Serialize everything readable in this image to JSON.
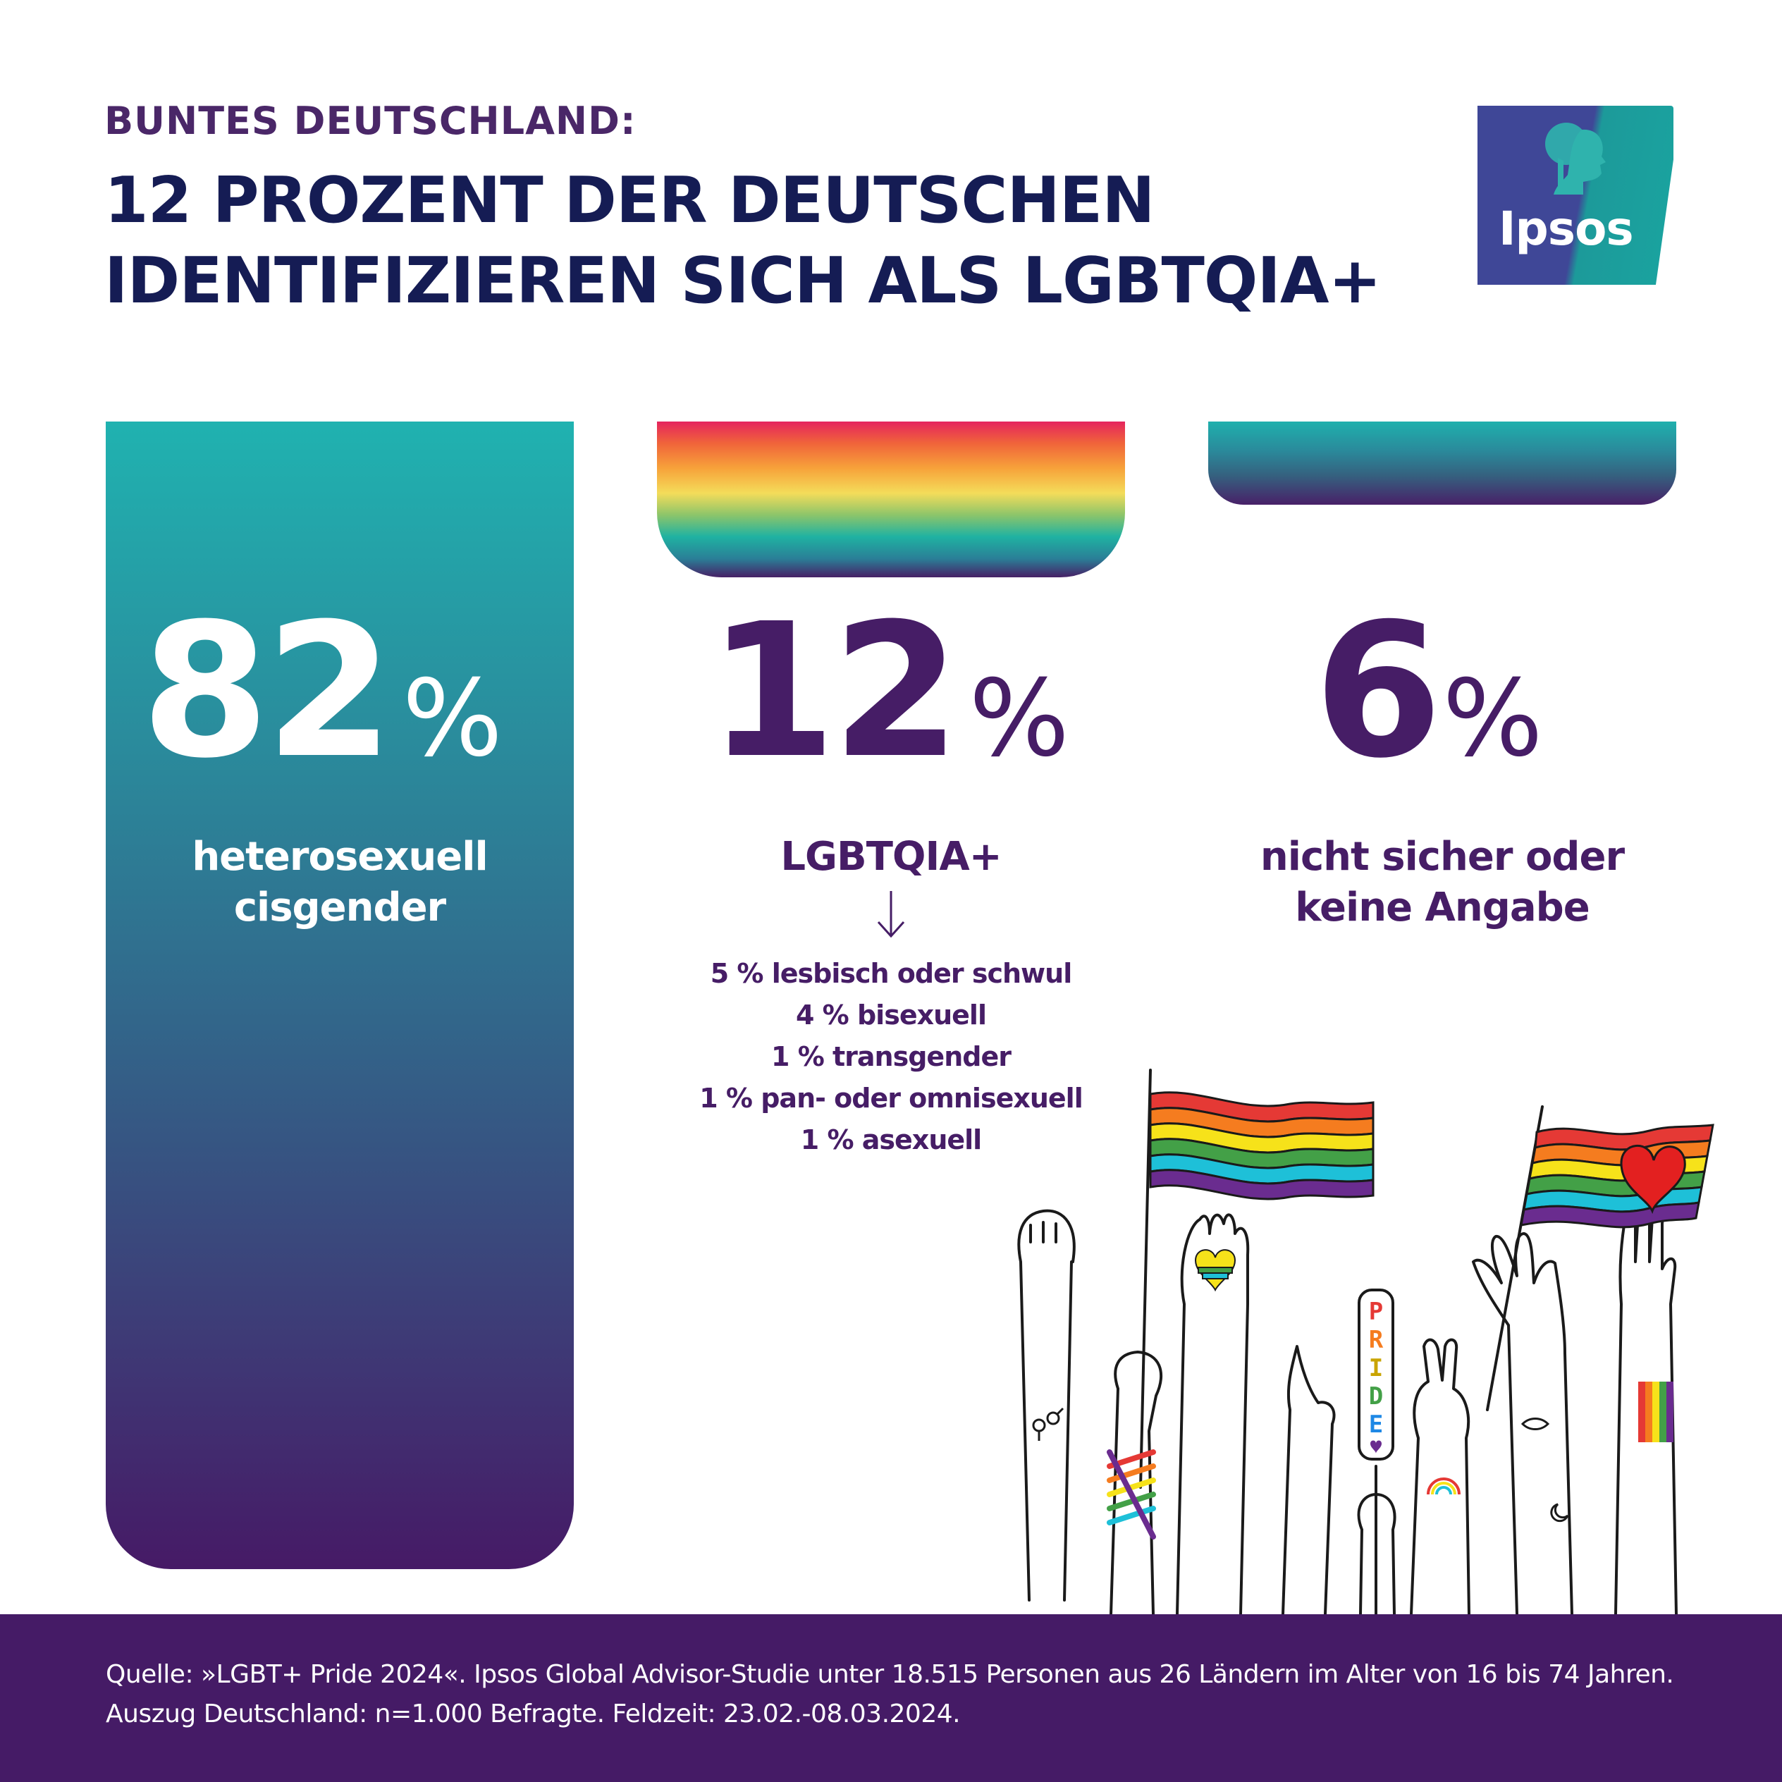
{
  "header": {
    "kicker": "BUNTES DEUTSCHLAND:",
    "headline_line1": "12 PROZENT DER DEUTSCHEN",
    "headline_line2": "IDENTIFIZIEREN SICH ALS LGBTQIA+"
  },
  "logo": {
    "text": "Ipsos",
    "icon": "ipsos-head-icon"
  },
  "chart_data": {
    "type": "bar",
    "title": "12 PROZENT DER DEUTSCHEN IDENTIFIZIEREN SICH ALS LGBTQIA+",
    "categories": [
      "heterosexuell cisgender",
      "LGBTQIA+",
      "nicht sicher oder keine Angabe"
    ],
    "values": [
      82,
      12,
      6
    ],
    "unit": "%",
    "labels": {
      "hetero": {
        "value": "82",
        "symbol": "%",
        "line1": "heterosexuell",
        "line2": "cisgender"
      },
      "lgbt": {
        "value": "12",
        "symbol": "%",
        "line1": "LGBTQIA+"
      },
      "unsure": {
        "value": "6",
        "symbol": "%",
        "line1": "nicht sicher oder",
        "line2": "keine Angabe"
      }
    },
    "breakdown": [
      {
        "label": "5 % lesbisch oder schwul",
        "value": 5
      },
      {
        "label": "4 % bisexuell",
        "value": 4
      },
      {
        "label": "1 % transgender",
        "value": 1
      },
      {
        "label": "1 % pan- oder omnisexuell",
        "value": 1
      },
      {
        "label": "1 % asexuell",
        "value": 1
      }
    ],
    "colors": {
      "hetero": [
        "#20b2b0",
        "#461a66"
      ],
      "lgbt": [
        "#e5245e",
        "#f7a23a",
        "#f4dc5a",
        "#1fb2a2",
        "#472066"
      ],
      "unsure": [
        "#1fb0ad",
        "#482068"
      ],
      "dark_purple": "#461d66",
      "navy": "#151c54"
    }
  },
  "illustration": {
    "sign_text": "PRIDE",
    "icons": [
      "rainbow-flag-icon",
      "heart-flag-icon",
      "raised-hands-icon"
    ]
  },
  "footer": {
    "line1": "Quelle: »LGBT+ Pride 2024«. Ipsos Global Advisor-Studie unter 18.515 Personen aus 26 Ländern im Alter von 16 bis 74 Jahren.",
    "line2": "Auszug Deutschland: n=1.000 Befragte. Feldzeit: 23.02.-08.03.2024."
  }
}
